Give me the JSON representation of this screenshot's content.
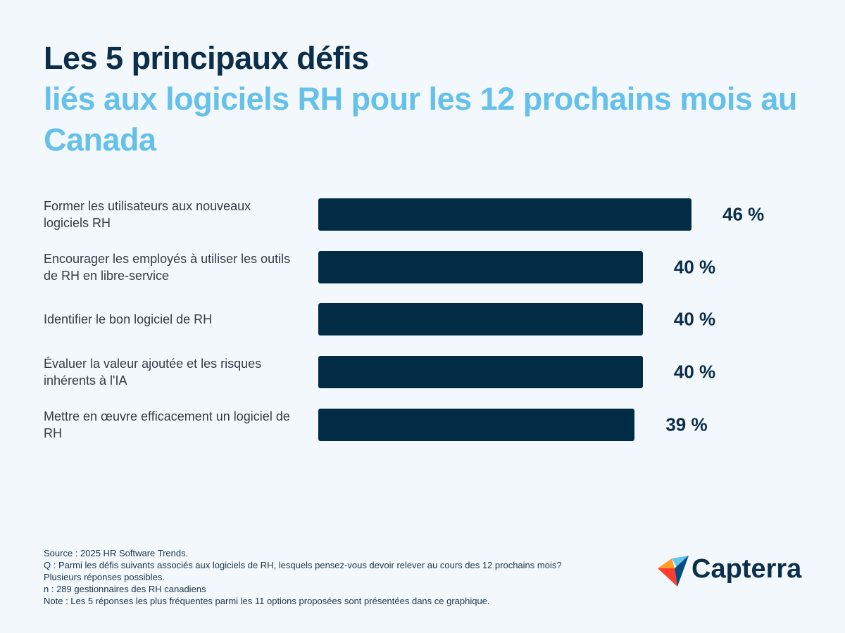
{
  "chart_data": {
    "type": "hbar",
    "title": "Les 5 principaux défis",
    "subtitle": "liés aux logiciels RH pour les 12 prochains mois au Canada",
    "categories": [
      "Former les utilisateurs aux nouveaux logiciels RH",
      "Encourager les employés à utiliser les outils de RH en libre-service",
      "Identifier le bon logiciel de RH",
      "Évaluer la valeur ajoutée et les risques inhérents à l'IA",
      "Mettre en œuvre efficacement un logiciel de RH"
    ],
    "values": [
      46,
      40,
      40,
      40,
      39
    ],
    "value_labels": [
      "46 %",
      "40 %",
      "40 %",
      "40 %",
      "39 %"
    ],
    "color": "#022c45",
    "notes": [
      "Source : 2025 HR Software Trends.",
      "Q : Parmi les défis suivants associés aux logiciels de RH, lesquels pensez-vous devoir relever au cours des 12 prochains mois?",
      "Plusieurs réponses possibles.",
      "n : 289 gestionnaires des RH canadiens",
      "Note : Les 5 réponses les plus fréquentes parmi les 11 options proposées sont présentées dans ce graphique."
    ],
    "logo": "Capterra"
  }
}
